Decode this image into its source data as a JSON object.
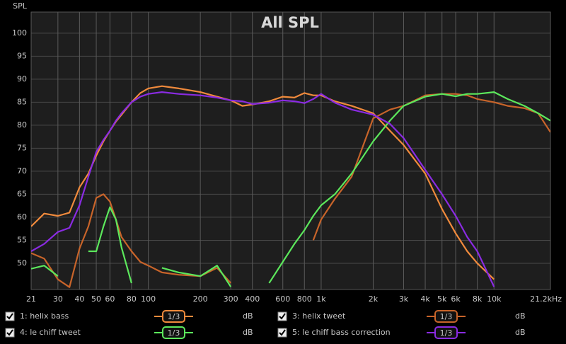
{
  "chart_data": {
    "type": "line",
    "title": "All SPL",
    "y_label": "SPL",
    "x_scale": "log",
    "grid": true,
    "xlim": [
      21,
      21200
    ],
    "ylim": [
      44.3,
      104.6
    ],
    "xticks": [
      21,
      30,
      40,
      50,
      60,
      80,
      100,
      200,
      300,
      400,
      600,
      800,
      {
        "value": 1000,
        "label": "1k"
      },
      {
        "value": 2000,
        "label": "2k"
      },
      {
        "value": 3000,
        "label": "3k"
      },
      {
        "value": 4000,
        "label": "4k"
      },
      {
        "value": 5000,
        "label": "5k"
      },
      {
        "value": 6000,
        "label": "6k"
      },
      {
        "value": 8000,
        "label": "8k"
      },
      {
        "value": 10000,
        "label": "10k"
      },
      {
        "value": 21200,
        "label": "21.2kHz"
      }
    ],
    "yticks": [
      50,
      55,
      60,
      65,
      70,
      75,
      80,
      85,
      90,
      95,
      100
    ],
    "x": [
      21,
      25,
      30,
      35,
      40,
      45,
      50,
      55,
      60,
      65,
      70,
      80,
      90,
      100,
      120,
      150,
      200,
      250,
      300,
      350,
      400,
      500,
      600,
      700,
      800,
      900,
      1000,
      1200,
      1500,
      2000,
      2500,
      3000,
      4000,
      5000,
      6000,
      7000,
      8000,
      10000,
      12000,
      15000,
      18000,
      21200
    ],
    "series": [
      {
        "name": "1: helix bass",
        "color": "#f08a3c",
        "smoothing": "1/3",
        "unit": "dB",
        "values": [
          58,
          60.8,
          60.3,
          61,
          66.5,
          69.5,
          73.4,
          76.5,
          78.8,
          80.8,
          82.3,
          85,
          87,
          88,
          88.5,
          88,
          87.2,
          86.2,
          85.4,
          84.2,
          84.5,
          85.2,
          86.2,
          86,
          87,
          86.5,
          86.5,
          85.2,
          84.2,
          82.6,
          78.8,
          75.7,
          69.5,
          61.8,
          56.5,
          52.6,
          50,
          46.5,
          null,
          null,
          null,
          null
        ]
      },
      {
        "name": "3: helix tweet",
        "color": "#c8642a",
        "smoothing": "1/3",
        "unit": "dB",
        "values": [
          52.2,
          51,
          46.5,
          44.8,
          53.2,
          58,
          64.2,
          65,
          63.4,
          59.5,
          55.7,
          52.6,
          50.3,
          49.5,
          48,
          47.5,
          47.2,
          49,
          45.7,
          null,
          null,
          null,
          null,
          null,
          null,
          55,
          59.5,
          64,
          68.8,
          81.5,
          83.4,
          84.2,
          86.5,
          86.8,
          86.8,
          86.5,
          85.7,
          85,
          84.2,
          83.7,
          82.6,
          78.5
        ]
      },
      {
        "name": "4: le chiff tweet",
        "color": "#5ce85c",
        "smoothing": "1/3",
        "unit": "dB",
        "values": [
          48.8,
          49.5,
          47.2,
          null,
          null,
          52.6,
          52.6,
          58,
          62.2,
          59.5,
          53.4,
          45.7,
          null,
          null,
          49,
          48,
          47.2,
          49.5,
          44.9,
          null,
          null,
          45.7,
          50.3,
          54.2,
          57.2,
          60.3,
          62.6,
          65,
          69.5,
          76.5,
          81,
          84.2,
          86.2,
          86.8,
          86.3,
          86.8,
          86.8,
          87.2,
          85.7,
          84.2,
          82.6,
          81
        ]
      },
      {
        "name": "5: le chiff bass correction",
        "color": "#8a2be2",
        "smoothing": "1/3",
        "unit": "dB",
        "values": [
          52.6,
          54.2,
          56.8,
          57.7,
          62.6,
          68.8,
          74.2,
          76.8,
          78.8,
          81,
          82.6,
          85,
          86.2,
          86.8,
          87.2,
          86.8,
          86.5,
          86,
          85.4,
          85.2,
          84.6,
          84.9,
          85.4,
          85.2,
          84.8,
          85.7,
          86.8,
          84.9,
          83.4,
          82.3,
          80.3,
          77.2,
          70.3,
          65,
          60.3,
          55.7,
          52.6,
          44.9,
          null,
          null,
          null,
          null
        ]
      }
    ]
  }
}
